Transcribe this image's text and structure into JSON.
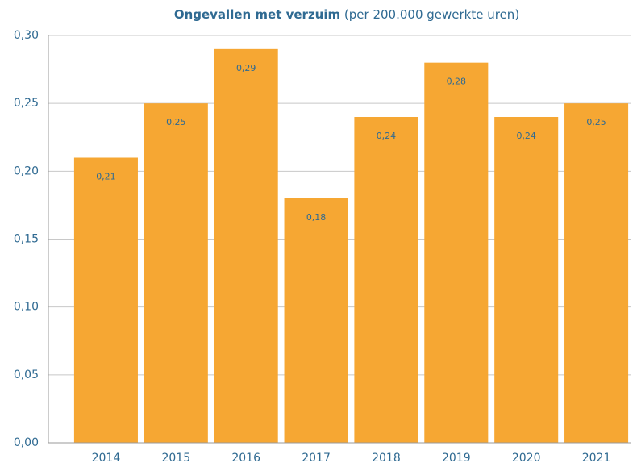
{
  "chart_data": {
    "type": "bar",
    "title": "Ongevallen met verzuim",
    "subtitle": "(per 200.000 gewerkte uren)",
    "categories": [
      "2014",
      "2015",
      "2016",
      "2017",
      "2018",
      "2019",
      "2020",
      "2021"
    ],
    "values": [
      0.21,
      0.25,
      0.29,
      0.18,
      0.24,
      0.28,
      0.24,
      0.25
    ],
    "value_labels": [
      "0,21",
      "0,25",
      "0,29",
      "0,18",
      "0,24",
      "0,28",
      "0,24",
      "0,25"
    ],
    "color": "#f6a733",
    "ylim": [
      0,
      0.3
    ],
    "yticks": [
      {
        "value": 0,
        "label": "0,00"
      },
      {
        "value": 0.05,
        "label": "0,05"
      },
      {
        "value": 0.1,
        "label": "0,10"
      },
      {
        "value": 0.15,
        "label": "0,15"
      },
      {
        "value": 0.2,
        "label": "0,20"
      },
      {
        "value": 0.25,
        "label": "0,25"
      },
      {
        "value": 0.3,
        "label": "0,30"
      }
    ],
    "grid": true
  }
}
